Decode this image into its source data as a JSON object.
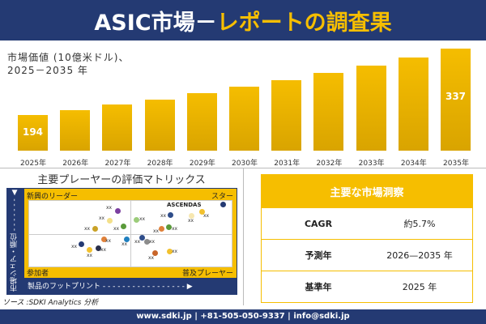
{
  "header": {
    "title_white": "ASIC市場－",
    "title_yellow": "レポートの調査果"
  },
  "chart_data": {
    "type": "bar",
    "title": "市場価値 (10億米ドル)、 2025－2035 年",
    "title_line1": "市場価値 (10億米ドル)、",
    "title_line2": "2025－2035 年",
    "categories": [
      "2025年",
      "2026年",
      "2027年",
      "2028年",
      "2029年",
      "2030年",
      "2031年",
      "2032年",
      "2033年",
      "2034年",
      "2035年"
    ],
    "values": [
      194,
      205,
      216,
      228,
      241,
      255,
      269,
      285,
      301,
      318,
      337
    ],
    "data_labels": {
      "0": "194",
      "10": "337"
    },
    "bar_color": "#f5bd00"
  },
  "matrix": {
    "title": "主要プレーヤーの評価マトリックス",
    "quadrants": {
      "top_left": "新興のリーダー",
      "top_right": "スター",
      "bottom_left": "参加者",
      "bottom_right": "普及プレーヤー"
    },
    "y_axis": "市場シェア・順位",
    "x_axis": "製品のフットプリント",
    "highlight_label": "ASCENDAS",
    "player_label": "xx",
    "player_colors": [
      "#243a73",
      "#7b3fa0",
      "#f3e08a",
      "#c9a227",
      "#5a9a3a",
      "#9ccc7a",
      "#2f4d8a",
      "#f7e7b0",
      "#f2c12e",
      "#e0813a",
      "#5a9a3a",
      "#e0813a",
      "#1f7fbf",
      "#243a73",
      "#f2c12e",
      "#2a2f4a",
      "#2f4d8a",
      "#8c8c8c",
      "#c8652a",
      "#f2c12e"
    ]
  },
  "source": "ソース :SDKI Analytics 分析",
  "insights": {
    "title": "主要な市場洞察",
    "rows": [
      {
        "key": "CAGR",
        "value": "約5.7%"
      },
      {
        "key": "予測年",
        "value": "2026—2035 年"
      },
      {
        "key": "基準年",
        "value": "2025 年"
      }
    ]
  },
  "footer": {
    "text": "www.sdki.jp | +81-505-050-9337 | info@sdki.jp"
  }
}
